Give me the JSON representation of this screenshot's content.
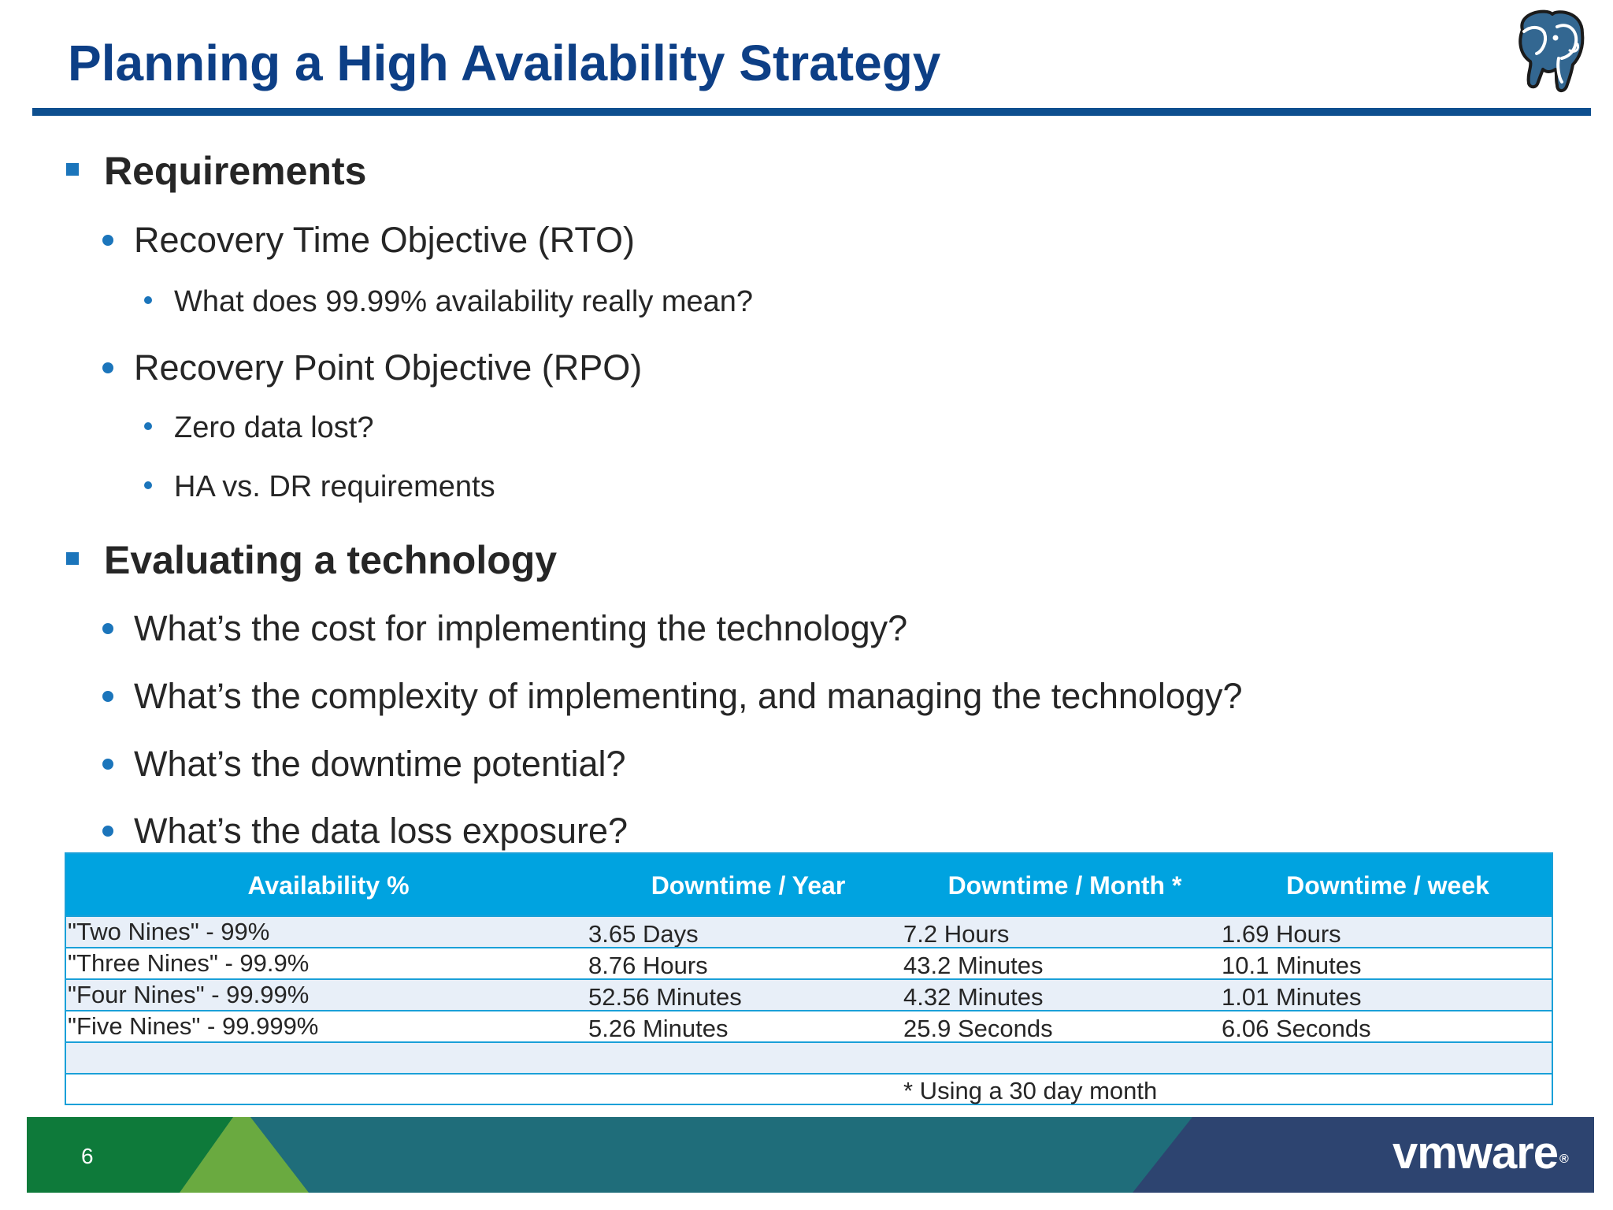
{
  "slide": {
    "title": "Planning a High Availability Strategy",
    "page_number": "6",
    "brand": "vmware",
    "brand_mark": "®"
  },
  "sections": [
    {
      "heading": "Requirements",
      "items": [
        {
          "text": "Recovery Time Objective (RTO)",
          "sub": [
            "What does 99.99% availability really mean?"
          ]
        },
        {
          "text": "Recovery Point Objective (RPO)",
          "sub": [
            "Zero data lost?",
            "HA vs. DR requirements"
          ]
        }
      ]
    },
    {
      "heading": "Evaluating a technology",
      "items": [
        {
          "text": "What’s the cost for implementing the technology?"
        },
        {
          "text": "What’s the complexity of implementing, and managing the technology?"
        },
        {
          "text": "What’s the downtime potential?"
        },
        {
          "text": "What’s the data loss exposure?"
        }
      ]
    }
  ],
  "table": {
    "headers": [
      "Availability %",
      "Downtime / Year",
      "Downtime / Month *",
      "Downtime / week"
    ],
    "rows": [
      [
        "\"Two Nines\" - 99%",
        "3.65 Days",
        "7.2 Hours",
        "1.69 Hours"
      ],
      [
        "\"Three Nines\" - 99.9%",
        "8.76 Hours",
        "43.2 Minutes",
        "10.1 Minutes"
      ],
      [
        "\"Four Nines\" - 99.99%",
        "52.56 Minutes",
        "4.32 Minutes",
        "1.01 Minutes"
      ],
      [
        "\"Five Nines\" - 99.999%",
        "5.26 Minutes",
        "25.9 Seconds",
        "6.06 Seconds"
      ]
    ],
    "footnote": "* Using a 30 day month"
  },
  "colors": {
    "title": "#0d3f86",
    "rule": "#0d4f8f",
    "bullet": "#1b75bb",
    "table_header": "#00a3e0",
    "table_alt_row": "#e8eff8",
    "footer_green": "#0e7a3a",
    "footer_light_green": "#6aaa40",
    "footer_teal": "#1f6d7a",
    "footer_navy": "#2d4470"
  },
  "icons": {
    "logo": "postgresql-elephant-icon"
  }
}
